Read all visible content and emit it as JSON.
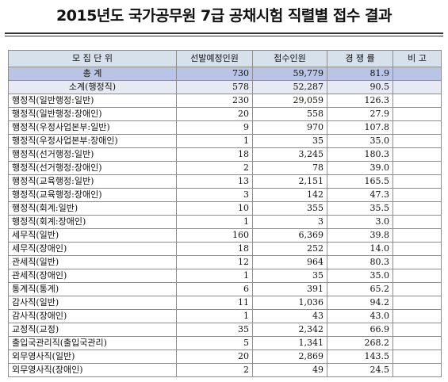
{
  "title": "2015년도 국가공무원 7급 공채시험 직렬별 접수 결과",
  "headers": [
    "모 집 단 위",
    "선발예정인원",
    "접수인원",
    "경 쟁 률",
    "비 고"
  ],
  "rows": [
    {
      "unit": "총     계",
      "planned": "730",
      "applicants": "59,779",
      "ratio": "81.9",
      "note": ""
    },
    {
      "unit": "소계(행정직)",
      "planned": "578",
      "applicants": "52,287",
      "ratio": "90.5",
      "note": ""
    },
    {
      "unit": "행정직(일반행정:일반)",
      "planned": "230",
      "applicants": "29,059",
      "ratio": "126.3",
      "note": ""
    },
    {
      "unit": "행정직(일반행정:장애인)",
      "planned": "20",
      "applicants": "558",
      "ratio": "27.9",
      "note": ""
    },
    {
      "unit": "행정직(우정사업본부:일반)",
      "planned": "9",
      "applicants": "970",
      "ratio": "107.8",
      "note": ""
    },
    {
      "unit": "행정직(우정사업본부:장애인)",
      "planned": "1",
      "applicants": "35",
      "ratio": "35.0",
      "note": ""
    },
    {
      "unit": "행정직(선거행정:일반)",
      "planned": "18",
      "applicants": "3,245",
      "ratio": "180.3",
      "note": ""
    },
    {
      "unit": "행정직(선거행정:장애인)",
      "planned": "2",
      "applicants": "78",
      "ratio": "39.0",
      "note": ""
    },
    {
      "unit": "행정직(교육행정:일반)",
      "planned": "13",
      "applicants": "2,151",
      "ratio": "165.5",
      "note": ""
    },
    {
      "unit": "행정직(교육행정:장애인)",
      "planned": "3",
      "applicants": "142",
      "ratio": "47.3",
      "note": ""
    },
    {
      "unit": "행정직(회계:일반)",
      "planned": "10",
      "applicants": "355",
      "ratio": "35.5",
      "note": ""
    },
    {
      "unit": "행정직(회계:장애인)",
      "planned": "1",
      "applicants": "3",
      "ratio": "3.0",
      "note": ""
    },
    {
      "unit": "세무직(일반)",
      "planned": "160",
      "applicants": "6,369",
      "ratio": "39.8",
      "note": ""
    },
    {
      "unit": "세무직(장애인)",
      "planned": "18",
      "applicants": "252",
      "ratio": "14.0",
      "note": ""
    },
    {
      "unit": "관세직(일반)",
      "planned": "12",
      "applicants": "964",
      "ratio": "80.3",
      "note": ""
    },
    {
      "unit": "관세직(장애인)",
      "planned": "1",
      "applicants": "35",
      "ratio": "35.0",
      "note": ""
    },
    {
      "unit": "통계직(통계)",
      "planned": "6",
      "applicants": "391",
      "ratio": "65.2",
      "note": ""
    },
    {
      "unit": "감사직(일반)",
      "planned": "11",
      "applicants": "1,036",
      "ratio": "94.2",
      "note": ""
    },
    {
      "unit": "감사직(장애인)",
      "planned": "1",
      "applicants": "43",
      "ratio": "43.0",
      "note": ""
    },
    {
      "unit": "교정직(교정)",
      "planned": "35",
      "applicants": "2,342",
      "ratio": "66.9",
      "note": ""
    },
    {
      "unit": "출입국관리직(출입국관리)",
      "planned": "5",
      "applicants": "1,341",
      "ratio": "268.2",
      "note": ""
    },
    {
      "unit": "외무영사직(일반)",
      "planned": "20",
      "applicants": "2,869",
      "ratio": "143.5",
      "note": ""
    },
    {
      "unit": "외무영사직(장애인)",
      "planned": "2",
      "applicants": "49",
      "ratio": "24.5",
      "note": ""
    }
  ]
}
